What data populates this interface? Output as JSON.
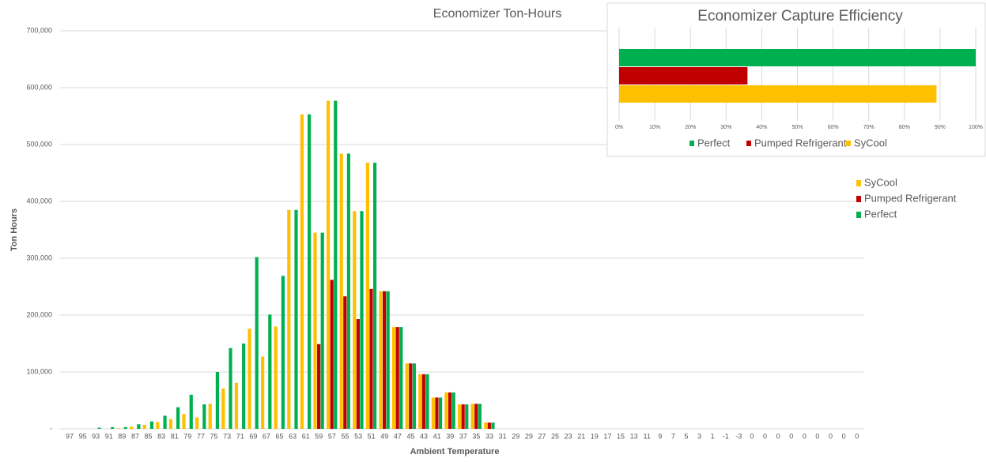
{
  "chart_data": [
    {
      "type": "bar",
      "title": "Economizer Ton-Hours",
      "x_label": "Ambient Temperature",
      "y_label": "Ton Hours",
      "categories": [
        "97",
        "95",
        "93",
        "91",
        "89",
        "87",
        "85",
        "83",
        "81",
        "79",
        "77",
        "75",
        "73",
        "71",
        "69",
        "67",
        "65",
        "63",
        "61",
        "59",
        "57",
        "55",
        "53",
        "51",
        "49",
        "47",
        "45",
        "43",
        "41",
        "39",
        "37",
        "35",
        "33",
        "31",
        "29",
        "29",
        "27",
        "25",
        "23",
        "21",
        "19",
        "17",
        "15",
        "13",
        "11",
        "9",
        "7",
        "5",
        "3",
        "1",
        "-1",
        "-3",
        "0",
        "0",
        "0",
        "0",
        "0",
        "0",
        "0",
        "0",
        "0"
      ],
      "series": [
        {
          "name": "SyCool",
          "color": "#ffc000",
          "values": [
            0,
            0,
            0,
            0,
            1000,
            4000,
            7000,
            12000,
            17000,
            26000,
            20000,
            44000,
            71000,
            81000,
            176000,
            127000,
            180000,
            385000,
            553000,
            345000,
            577000,
            484000,
            383000,
            468000,
            242000,
            179000,
            115000,
            96000,
            55000,
            64000,
            43000,
            44000,
            11000,
            0,
            0,
            0,
            0,
            0,
            0,
            0,
            0,
            0,
            0,
            0,
            0,
            0,
            0,
            0,
            0,
            0,
            0,
            0,
            0,
            0,
            0,
            0,
            0,
            0,
            0,
            0,
            0
          ]
        },
        {
          "name": "Pumped Refrigerant",
          "color": "#c00000",
          "values": [
            0,
            0,
            0,
            0,
            0,
            0,
            0,
            0,
            0,
            0,
            0,
            0,
            0,
            0,
            0,
            0,
            0,
            0,
            0,
            149000,
            262000,
            233000,
            193000,
            246000,
            242000,
            179000,
            115000,
            96000,
            55000,
            64000,
            43000,
            44000,
            11000,
            0,
            0,
            0,
            0,
            0,
            0,
            0,
            0,
            0,
            0,
            0,
            0,
            0,
            0,
            0,
            0,
            0,
            0,
            0,
            0,
            0,
            0,
            0,
            0,
            0,
            0,
            0,
            0
          ]
        },
        {
          "name": "Perfect",
          "color": "#00b050",
          "values": [
            0,
            0,
            2000,
            3000,
            3000,
            8000,
            13000,
            23000,
            38000,
            60000,
            43000,
            100000,
            142000,
            150000,
            302000,
            201000,
            269000,
            385000,
            553000,
            345000,
            577000,
            484000,
            383000,
            468000,
            242000,
            179000,
            115000,
            96000,
            55000,
            64000,
            43000,
            44000,
            11000,
            0,
            0,
            0,
            0,
            0,
            0,
            0,
            0,
            0,
            0,
            0,
            0,
            0,
            0,
            0,
            0,
            0,
            0,
            0,
            0,
            0,
            0,
            0,
            0,
            0,
            0,
            0,
            0
          ]
        }
      ],
      "ylim": [
        0,
        700000
      ],
      "yticks": [
        {
          "value": 0,
          "label": "-"
        },
        {
          "value": 100000,
          "label": "100,000"
        },
        {
          "value": 200000,
          "label": "200,000"
        },
        {
          "value": 300000,
          "label": "300,000"
        },
        {
          "value": 400000,
          "label": "400,000"
        },
        {
          "value": 500000,
          "label": "500,000"
        },
        {
          "value": 600000,
          "label": "600,000"
        },
        {
          "value": 700000,
          "label": "700,000"
        }
      ],
      "grid": true,
      "legend": "right"
    },
    {
      "type": "hbar",
      "title": "Economizer Capture Efficiency",
      "series": [
        {
          "name": "Perfect",
          "color": "#00b050",
          "values": [
            100
          ]
        },
        {
          "name": "Pumped Refrigerant",
          "color": "#c00000",
          "values": [
            36
          ]
        },
        {
          "name": "SyCool",
          "color": "#ffc000",
          "values": [
            89
          ]
        }
      ],
      "xlim": [
        0,
        100
      ],
      "xticks": [
        {
          "value": 0,
          "label": "0%"
        },
        {
          "value": 10,
          "label": "10%"
        },
        {
          "value": 20,
          "label": "20%"
        },
        {
          "value": 30,
          "label": "30%"
        },
        {
          "value": 40,
          "label": "40%"
        },
        {
          "value": 50,
          "label": "50%"
        },
        {
          "value": 60,
          "label": "60%"
        },
        {
          "value": 70,
          "label": "70%"
        },
        {
          "value": 80,
          "label": "80%"
        },
        {
          "value": 90,
          "label": "90%"
        },
        {
          "value": 100,
          "label": "100%"
        }
      ],
      "grid": true,
      "legend": "bottom"
    }
  ]
}
